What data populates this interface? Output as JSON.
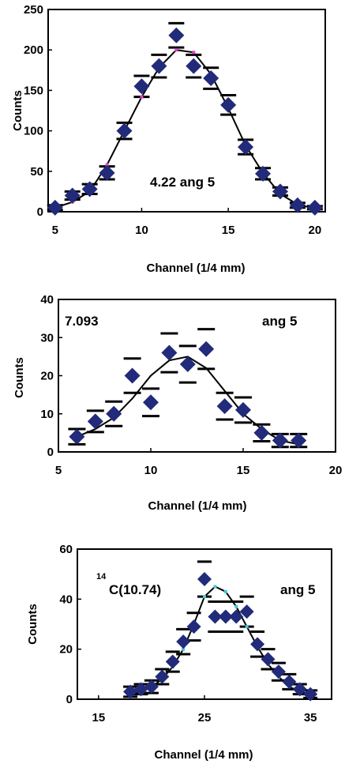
{
  "chart_data": [
    {
      "type": "scatter",
      "xlabel": "Channel (1/4 mm)",
      "ylabel": "Counts",
      "annotation": "4.22 ang 5",
      "xlim": [
        4.6,
        20.6
      ],
      "ylim": [
        0,
        250
      ],
      "xticks": [
        5,
        10,
        15,
        20
      ],
      "yticks": [
        0,
        50,
        100,
        150,
        200,
        250
      ],
      "x": [
        5,
        6,
        7,
        8,
        9,
        10,
        11,
        12,
        13,
        14,
        15,
        16,
        17,
        18,
        19,
        20
      ],
      "y": [
        5,
        20,
        28,
        48,
        100,
        155,
        180,
        218,
        180,
        165,
        132,
        80,
        47,
        25,
        8,
        5
      ],
      "err": [
        3,
        5,
        6,
        8,
        10,
        13,
        14,
        15,
        14,
        13,
        12,
        9,
        7,
        5,
        3,
        2
      ],
      "fit": [
        5,
        12,
        25,
        58,
        100,
        142,
        178,
        200,
        197,
        170,
        128,
        82,
        48,
        22,
        9,
        4
      ],
      "colors": {
        "marker": "#222a7a",
        "fit_marker": "#e040c8",
        "line": "#000000"
      }
    },
    {
      "type": "scatter",
      "xlabel": "Channel (1/4 mm)",
      "ylabel": "Counts",
      "annotation_left": "7.093",
      "annotation_right": "ang 5",
      "xlim": [
        5,
        20
      ],
      "ylim": [
        0,
        40
      ],
      "xticks": [
        5,
        10,
        15,
        20
      ],
      "yticks": [
        0,
        10,
        20,
        30,
        40
      ],
      "x": [
        6,
        7,
        8,
        9,
        10,
        11,
        12,
        13,
        14,
        15,
        16,
        17,
        18
      ],
      "y": [
        4,
        8,
        10,
        20,
        13,
        26,
        23,
        27,
        12,
        11,
        5,
        3,
        3
      ],
      "err": [
        2.0,
        2.8,
        3.2,
        4.5,
        3.6,
        5.1,
        4.8,
        5.2,
        3.5,
        3.3,
        2.2,
        1.7,
        1.7
      ],
      "fit": [
        4,
        6,
        9,
        14,
        20,
        24,
        25,
        22,
        16,
        10,
        6,
        3,
        2
      ],
      "colors": {
        "marker": "#222a7a",
        "line": "#000000"
      }
    },
    {
      "type": "scatter",
      "xlabel": "Channel (1/4 mm)",
      "ylabel": "Counts",
      "annotation_sup": "14",
      "annotation_left": "C(10.74)",
      "annotation_right": "ang 5",
      "xlim": [
        13,
        37
      ],
      "ylim": [
        0,
        60
      ],
      "xticks": [
        15,
        25,
        35
      ],
      "yticks": [
        0,
        20,
        40,
        60
      ],
      "x": [
        18,
        19,
        20,
        21,
        22,
        23,
        24,
        25,
        26,
        27,
        28,
        29,
        30,
        31,
        32,
        33,
        34,
        35
      ],
      "y": [
        3,
        4,
        5,
        9,
        15,
        23,
        29,
        48,
        33,
        33,
        33,
        35,
        22,
        16,
        11,
        7,
        4,
        2
      ],
      "err": [
        2,
        2,
        2.5,
        3,
        4,
        5,
        5.5,
        7,
        6,
        6,
        6,
        6,
        5,
        4,
        3.5,
        3,
        2,
        1.5
      ],
      "fit": [
        2,
        3,
        5,
        8,
        13,
        20,
        30,
        41,
        45,
        43,
        37,
        29,
        21,
        14,
        9,
        5,
        3,
        2
      ],
      "colors": {
        "marker": "#222a7a",
        "fit_marker": "#40c8e0",
        "line": "#000000"
      }
    }
  ]
}
